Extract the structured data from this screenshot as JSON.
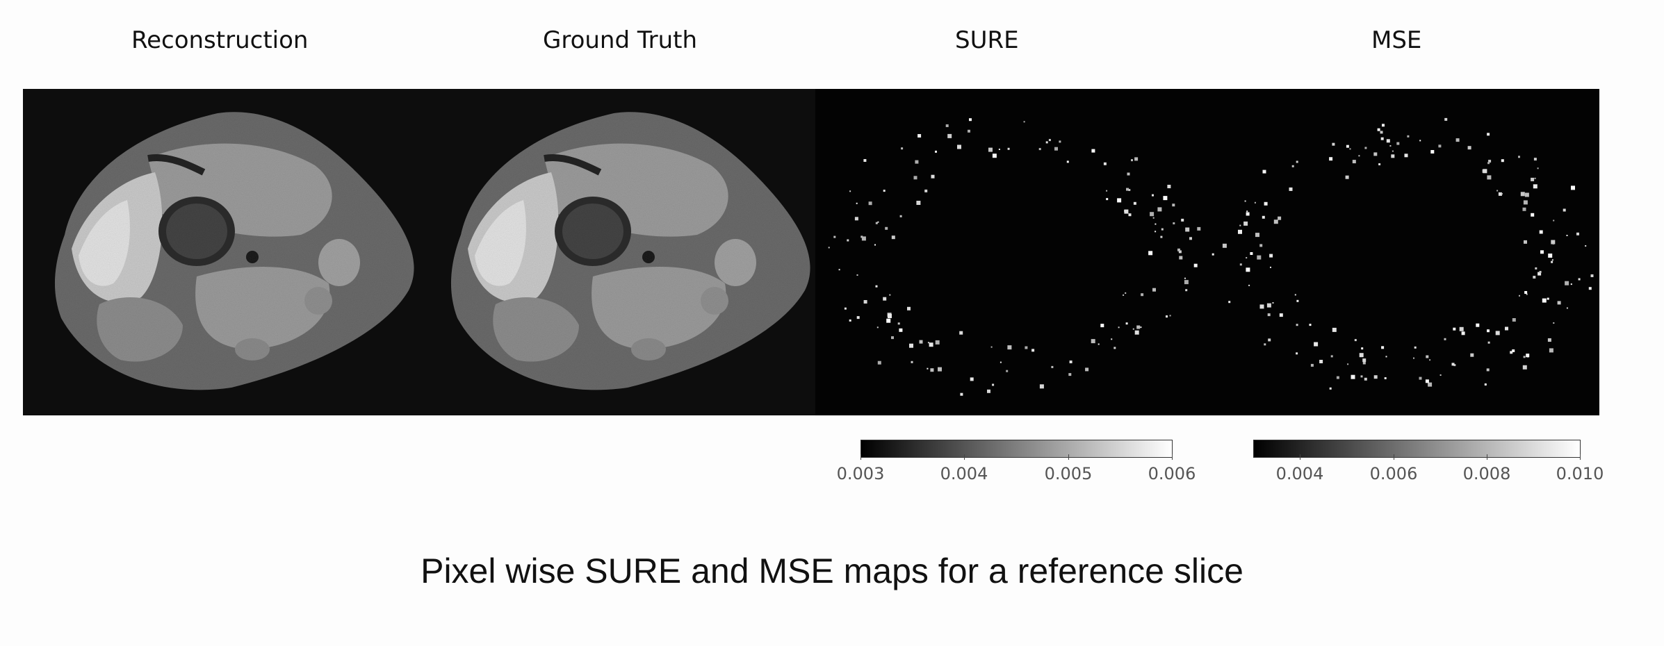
{
  "figure": {
    "panel_titles": [
      "Reconstruction",
      "Ground Truth",
      "SURE",
      "MSE"
    ],
    "colorbars": [
      {
        "name": "SURE",
        "ticks": [
          "0.003",
          "0.004",
          "0.005",
          "0.006"
        ],
        "range": [
          0.003,
          0.006
        ]
      },
      {
        "name": "MSE",
        "ticks": [
          "0.004",
          "0.006",
          "0.008",
          "0.010"
        ],
        "range": [
          0.003,
          0.01
        ]
      }
    ],
    "colormap": {
      "low": "#000000",
      "high": "#ffffff"
    },
    "background": "#060606"
  },
  "caption": "Pixel wise SURE and MSE maps for a reference slice"
}
